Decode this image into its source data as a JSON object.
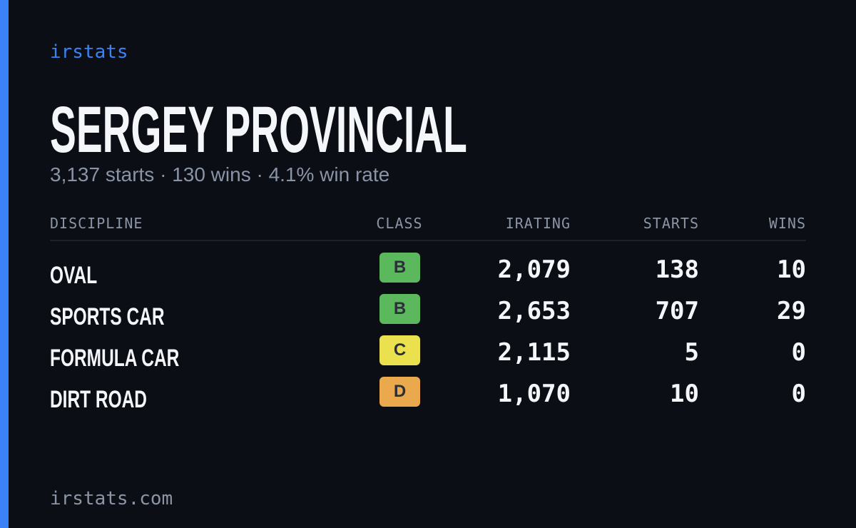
{
  "brand": "irstats",
  "driver": {
    "name": "SERGEY PROVINCIAL",
    "summary": "3,137 starts · 130 wins · 4.1% win rate"
  },
  "table": {
    "headers": [
      "DISCIPLINE",
      "CLASS",
      "IRATING",
      "STARTS",
      "WINS"
    ],
    "rows": [
      {
        "discipline": "OVAL",
        "class": "B",
        "class_color": "#5cb85c",
        "irating": "2,079",
        "starts": "138",
        "wins": "10"
      },
      {
        "discipline": "SPORTS CAR",
        "class": "B",
        "class_color": "#5cb85c",
        "irating": "2,653",
        "starts": "707",
        "wins": "29"
      },
      {
        "discipline": "FORMULA CAR",
        "class": "C",
        "class_color": "#ebe14e",
        "irating": "2,115",
        "starts": "5",
        "wins": "0"
      },
      {
        "discipline": "DIRT ROAD",
        "class": "D",
        "class_color": "#eaa94c",
        "irating": "1,070",
        "starts": "10",
        "wins": "0"
      }
    ]
  },
  "footer": "irstats.com"
}
